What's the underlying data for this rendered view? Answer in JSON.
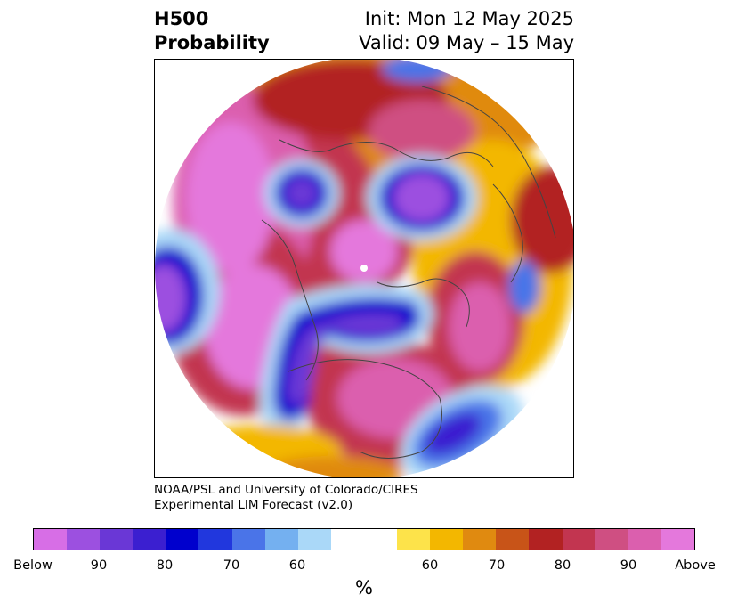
{
  "header": {
    "left_line1": "H500",
    "left_line2": "Probability",
    "right_line1": "Init: Mon 12 May 2025",
    "right_line2": "Valid: 09 May – 15 May"
  },
  "credit": {
    "line1": "NOAA/PSL and University of Colorado/CIRES",
    "line2": "Experimental LIM Forecast (v2.0)"
  },
  "colorbar": {
    "unit": "%",
    "colors": [
      "#d76ee6",
      "#9c50e0",
      "#6a37d6",
      "#3b1fd0",
      "#0000cd",
      "#2137dd",
      "#4a74e8",
      "#74b0f0",
      "#aad8f8",
      "#ffffff",
      "#ffffff",
      "#fde34a",
      "#f3b700",
      "#e08a10",
      "#c85418",
      "#b22222",
      "#c23550",
      "#cf4f82",
      "#db5fae",
      "#e478dc"
    ],
    "tick_labels": [
      "Below",
      "90",
      "80",
      "70",
      "60",
      "60",
      "70",
      "80",
      "90",
      "Above"
    ]
  },
  "map": {
    "projection": "north-polar-stereographic",
    "field": "500 hPa height anomaly probability"
  }
}
